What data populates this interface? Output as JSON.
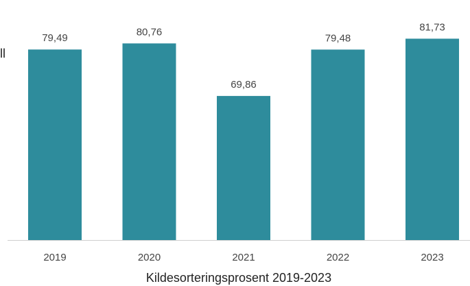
{
  "chart_data": {
    "type": "bar",
    "categories": [
      "2019",
      "2020",
      "2021",
      "2022",
      "2023"
    ],
    "values": [
      79.49,
      80.76,
      69.86,
      79.48,
      81.73
    ],
    "value_labels": [
      "79,49",
      "80,76",
      "69,86",
      "79,48",
      "81,73"
    ],
    "title": "",
    "xlabel": "Kildesorteringsprosent 2019-2023",
    "ylabel": "",
    "ylim": [
      40,
      82
    ],
    "grid": false,
    "legend": "none"
  },
  "edge_text": "ll",
  "colors": {
    "bar": "#2e8c9c",
    "axis": "#cfcfcf",
    "text": "#444444"
  }
}
